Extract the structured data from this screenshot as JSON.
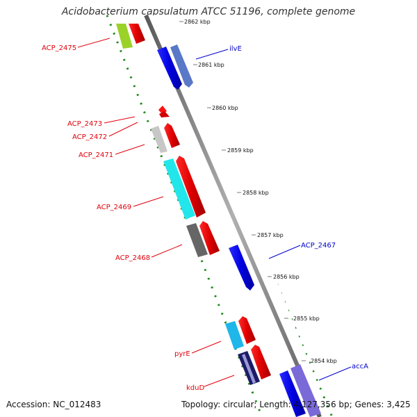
{
  "title": "Acidobacterium capsulatum ATCC 51196, complete genome",
  "footer": {
    "accession": "Accession: NC_012483",
    "topology": "Topology: circular; Length: 4,127,356 bp; Genes: 3,425"
  },
  "ticks": [
    "2862 kbp",
    "2861 kbp",
    "2860 kbp",
    "2859 kbp",
    "2858 kbp",
    "2857 kbp",
    "2856 kbp",
    "2855 kbp",
    "2854 kbp"
  ],
  "reverse_labels": [
    "ACP_2475",
    "ACP_2473",
    "ACP_2472",
    "ACP_2471",
    "ACP_2469",
    "ACP_2468",
    "pyrE",
    "kduD"
  ],
  "forward_labels": [
    "ilvE",
    "ACP_2467",
    "accA"
  ],
  "colors": {
    "reverse_label": "#e0000a",
    "forward_label": "#0000cc",
    "tick_dots": "#1e8a1e",
    "backbone": "#808080"
  }
}
